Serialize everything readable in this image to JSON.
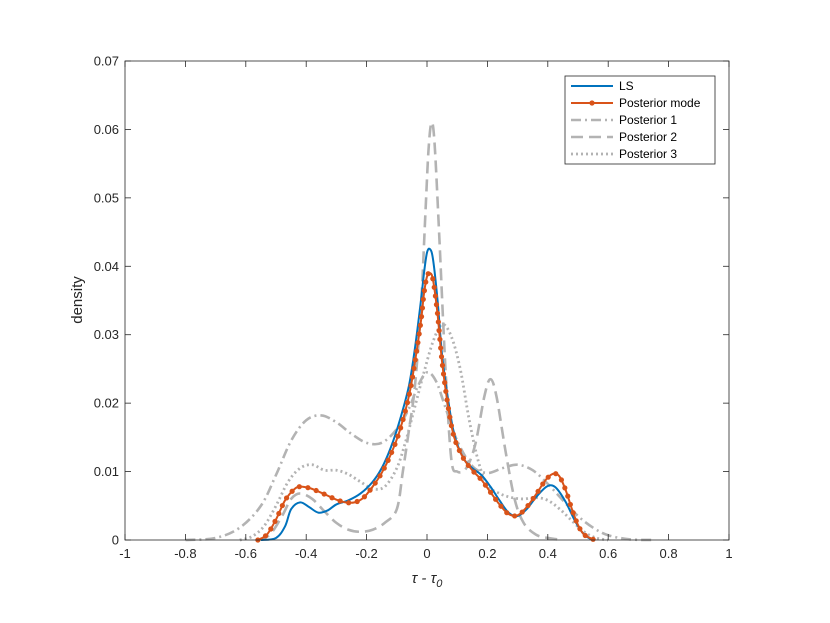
{
  "chart_data": {
    "type": "line",
    "title": "",
    "xlabel": "τ - τ₀",
    "xlabel_parts": {
      "main": "τ - τ",
      "sub": "0"
    },
    "ylabel": "density",
    "xlim": [
      -1,
      1
    ],
    "ylim": [
      0,
      0.07
    ],
    "xticks": [
      -1,
      -0.8,
      -0.6,
      -0.4,
      -0.2,
      0,
      0.2,
      0.4,
      0.6,
      0.8,
      1
    ],
    "xtick_labels": [
      "-1",
      "-0.8",
      "-0.6",
      "-0.4",
      "-0.2",
      "0",
      "0.2",
      "0.4",
      "0.6",
      "0.8",
      "1"
    ],
    "yticks": [
      0,
      0.01,
      0.02,
      0.03,
      0.04,
      0.05,
      0.06,
      0.07
    ],
    "ytick_labels": [
      "0",
      "0.01",
      "0.02",
      "0.03",
      "0.04",
      "0.05",
      "0.06",
      "0.07"
    ],
    "grid": false,
    "legend_position": "top-right",
    "series": [
      {
        "name": "LS",
        "color": "#0072BD",
        "style": "solid",
        "points": [
          [
            -0.55,
            0
          ],
          [
            -0.5,
            0.0003
          ],
          [
            -0.47,
            0.002
          ],
          [
            -0.45,
            0.0045
          ],
          [
            -0.42,
            0.0055
          ],
          [
            -0.39,
            0.0048
          ],
          [
            -0.36,
            0.004
          ],
          [
            -0.33,
            0.0043
          ],
          [
            -0.3,
            0.0052
          ],
          [
            -0.26,
            0.0058
          ],
          [
            -0.22,
            0.0068
          ],
          [
            -0.18,
            0.0085
          ],
          [
            -0.15,
            0.0105
          ],
          [
            -0.12,
            0.0135
          ],
          [
            -0.09,
            0.0175
          ],
          [
            -0.06,
            0.0225
          ],
          [
            -0.04,
            0.028
          ],
          [
            -0.02,
            0.035
          ],
          [
            -0.01,
            0.039
          ],
          [
            0,
            0.042
          ],
          [
            0.01,
            0.0425
          ],
          [
            0.02,
            0.041
          ],
          [
            0.035,
            0.035
          ],
          [
            0.05,
            0.027
          ],
          [
            0.07,
            0.0205
          ],
          [
            0.09,
            0.0155
          ],
          [
            0.12,
            0.012
          ],
          [
            0.15,
            0.0105
          ],
          [
            0.18,
            0.0095
          ],
          [
            0.21,
            0.0078
          ],
          [
            0.24,
            0.0058
          ],
          [
            0.27,
            0.004
          ],
          [
            0.3,
            0.0035
          ],
          [
            0.33,
            0.0045
          ],
          [
            0.36,
            0.0062
          ],
          [
            0.39,
            0.0076
          ],
          [
            0.41,
            0.008
          ],
          [
            0.43,
            0.0075
          ],
          [
            0.46,
            0.0055
          ],
          [
            0.49,
            0.0028
          ],
          [
            0.52,
            0.0008
          ],
          [
            0.55,
            0
          ]
        ]
      },
      {
        "name": "Posterior mode",
        "color": "#D95319",
        "style": "solid-marker",
        "points": [
          [
            -0.56,
            0
          ],
          [
            -0.53,
            0.0008
          ],
          [
            -0.5,
            0.003
          ],
          [
            -0.47,
            0.0058
          ],
          [
            -0.44,
            0.0074
          ],
          [
            -0.42,
            0.0078
          ],
          [
            -0.39,
            0.0076
          ],
          [
            -0.36,
            0.0071
          ],
          [
            -0.33,
            0.0065
          ],
          [
            -0.3,
            0.0059
          ],
          [
            -0.27,
            0.0055
          ],
          [
            -0.24,
            0.0055
          ],
          [
            -0.21,
            0.0062
          ],
          [
            -0.18,
            0.0078
          ],
          [
            -0.15,
            0.0098
          ],
          [
            -0.12,
            0.0125
          ],
          [
            -0.09,
            0.016
          ],
          [
            -0.06,
            0.021
          ],
          [
            -0.04,
            0.026
          ],
          [
            -0.02,
            0.032
          ],
          [
            -0.01,
            0.036
          ],
          [
            0,
            0.0385
          ],
          [
            0.01,
            0.039
          ],
          [
            0.02,
            0.038
          ],
          [
            0.035,
            0.033
          ],
          [
            0.05,
            0.026
          ],
          [
            0.07,
            0.0195
          ],
          [
            0.09,
            0.015
          ],
          [
            0.12,
            0.012
          ],
          [
            0.15,
            0.0102
          ],
          [
            0.18,
            0.0088
          ],
          [
            0.21,
            0.007
          ],
          [
            0.24,
            0.0052
          ],
          [
            0.27,
            0.0038
          ],
          [
            0.3,
            0.0036
          ],
          [
            0.33,
            0.0048
          ],
          [
            0.36,
            0.0066
          ],
          [
            0.39,
            0.0086
          ],
          [
            0.41,
            0.0095
          ],
          [
            0.425,
            0.0097
          ],
          [
            0.44,
            0.0092
          ],
          [
            0.46,
            0.0072
          ],
          [
            0.48,
            0.0045
          ],
          [
            0.5,
            0.0022
          ],
          [
            0.52,
            0.0008
          ],
          [
            0.55,
            0.0001
          ]
        ]
      },
      {
        "name": "Posterior 1",
        "color": "#B3B3B3",
        "style": "dashdot",
        "points": [
          [
            -0.8,
            0
          ],
          [
            -0.7,
            0.0003
          ],
          [
            -0.62,
            0.0018
          ],
          [
            -0.55,
            0.005
          ],
          [
            -0.5,
            0.0095
          ],
          [
            -0.45,
            0.0145
          ],
          [
            -0.4,
            0.0175
          ],
          [
            -0.35,
            0.0182
          ],
          [
            -0.3,
            0.0172
          ],
          [
            -0.25,
            0.0155
          ],
          [
            -0.2,
            0.0142
          ],
          [
            -0.15,
            0.0142
          ],
          [
            -0.1,
            0.0162
          ],
          [
            -0.06,
            0.0192
          ],
          [
            -0.03,
            0.0225
          ],
          [
            0,
            0.0245
          ],
          [
            0.03,
            0.0232
          ],
          [
            0.06,
            0.0195
          ],
          [
            0.1,
            0.0145
          ],
          [
            0.15,
            0.0108
          ],
          [
            0.2,
            0.0098
          ],
          [
            0.25,
            0.0105
          ],
          [
            0.3,
            0.011
          ],
          [
            0.35,
            0.0102
          ],
          [
            0.4,
            0.0082
          ],
          [
            0.45,
            0.0058
          ],
          [
            0.5,
            0.0035
          ],
          [
            0.55,
            0.0018
          ],
          [
            0.6,
            0.0007
          ],
          [
            0.67,
            0.0001
          ],
          [
            0.75,
            0
          ]
        ]
      },
      {
        "name": "Posterior 2",
        "color": "#B3B3B3",
        "style": "dashed",
        "points": [
          [
            -0.56,
            0
          ],
          [
            -0.52,
            0.0008
          ],
          [
            -0.48,
            0.0035
          ],
          [
            -0.45,
            0.006
          ],
          [
            -0.42,
            0.0068
          ],
          [
            -0.38,
            0.006
          ],
          [
            -0.34,
            0.0042
          ],
          [
            -0.3,
            0.0025
          ],
          [
            -0.26,
            0.0015
          ],
          [
            -0.22,
            0.0012
          ],
          [
            -0.18,
            0.0015
          ],
          [
            -0.14,
            0.0025
          ],
          [
            -0.1,
            0.0045
          ],
          [
            -0.08,
            0.01
          ],
          [
            -0.06,
            0.016
          ],
          [
            -0.04,
            0.0225
          ],
          [
            -0.02,
            0.034
          ],
          [
            -0.005,
            0.048
          ],
          [
            0.005,
            0.057
          ],
          [
            0.015,
            0.061
          ],
          [
            0.025,
            0.058
          ],
          [
            0.04,
            0.045
          ],
          [
            0.06,
            0.026
          ],
          [
            0.08,
            0.012
          ],
          [
            0.1,
            0.01
          ],
          [
            0.13,
            0.0105
          ],
          [
            0.16,
            0.014
          ],
          [
            0.19,
            0.021
          ],
          [
            0.21,
            0.0235
          ],
          [
            0.23,
            0.021
          ],
          [
            0.26,
            0.013
          ],
          [
            0.29,
            0.006
          ],
          [
            0.32,
            0.0025
          ],
          [
            0.36,
            0.0008
          ],
          [
            0.4,
            0.0003
          ],
          [
            0.45,
            0
          ]
        ]
      },
      {
        "name": "Posterior 3",
        "color": "#B3B3B3",
        "style": "dotted",
        "points": [
          [
            -0.62,
            0
          ],
          [
            -0.58,
            0.0005
          ],
          [
            -0.54,
            0.002
          ],
          [
            -0.5,
            0.005
          ],
          [
            -0.46,
            0.0085
          ],
          [
            -0.42,
            0.0105
          ],
          [
            -0.38,
            0.011
          ],
          [
            -0.34,
            0.0102
          ],
          [
            -0.3,
            0.0102
          ],
          [
            -0.26,
            0.0096
          ],
          [
            -0.22,
            0.0085
          ],
          [
            -0.18,
            0.0075
          ],
          [
            -0.14,
            0.0078
          ],
          [
            -0.1,
            0.0105
          ],
          [
            -0.07,
            0.0145
          ],
          [
            -0.04,
            0.0195
          ],
          [
            -0.01,
            0.0245
          ],
          [
            0.02,
            0.029
          ],
          [
            0.05,
            0.0315
          ],
          [
            0.08,
            0.0298
          ],
          [
            0.11,
            0.025
          ],
          [
            0.14,
            0.0175
          ],
          [
            0.17,
            0.0115
          ],
          [
            0.2,
            0.008
          ],
          [
            0.24,
            0.0068
          ],
          [
            0.28,
            0.0062
          ],
          [
            0.32,
            0.006
          ],
          [
            0.36,
            0.0062
          ],
          [
            0.4,
            0.0058
          ],
          [
            0.44,
            0.0045
          ],
          [
            0.48,
            0.0028
          ],
          [
            0.52,
            0.0012
          ],
          [
            0.56,
            0.0003
          ],
          [
            0.6,
            0
          ]
        ]
      }
    ]
  }
}
